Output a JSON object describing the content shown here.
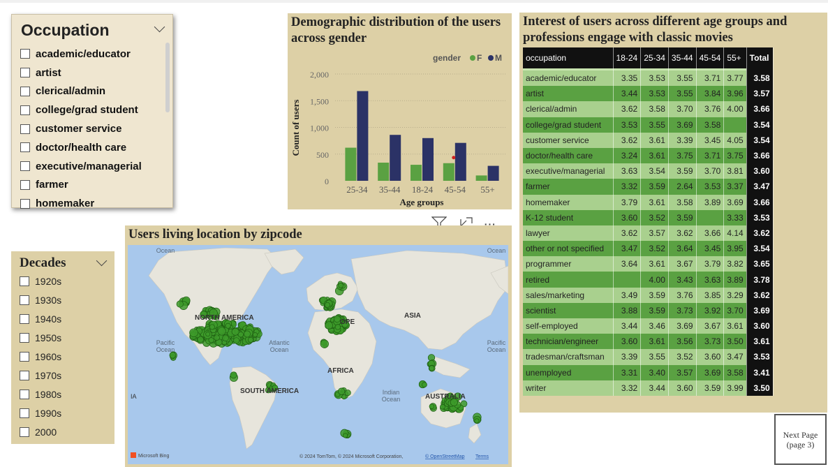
{
  "occupation_slicer": {
    "title": "Occupation",
    "items": [
      "academic/educator",
      "artist",
      "clerical/admin",
      "college/grad student",
      "customer service",
      "doctor/health care",
      "executive/managerial",
      "farmer",
      "homemaker"
    ]
  },
  "decades_slicer": {
    "title": "Decades",
    "items": [
      "1920s",
      "1930s",
      "1940s",
      "1950s",
      "1960s",
      "1970s",
      "1980s",
      "1990s",
      "2000"
    ]
  },
  "chart_data": {
    "type": "bar",
    "title": "Demographic distribution of the users across gender",
    "xlabel": "Age groups",
    "ylabel": "Count of users",
    "legend_title": "gender",
    "categories": [
      "25-34",
      "35-44",
      "18-24",
      "45-54",
      "55+"
    ],
    "series": [
      {
        "name": "F",
        "color": "#5aa142",
        "values": [
          620,
          340,
          300,
          330,
          100
        ]
      },
      {
        "name": "M",
        "color": "#2b3266",
        "values": [
          1680,
          860,
          800,
          710,
          280
        ]
      }
    ],
    "yticks": [
      "0",
      "500",
      "1,000",
      "1,500",
      "2,000"
    ],
    "ylim": [
      0,
      2000
    ]
  },
  "map": {
    "title": "Users living location by zipcode",
    "labels": {
      "north_america": "NORTH AMERICA",
      "europe": "OPE",
      "asia": "ASIA",
      "africa": "AFRICA",
      "south_america": "SOUTH AMERICA",
      "australia": "AUSTRALIA",
      "pacific_left": "Pacific\nOcean",
      "pacific_right": "Pacific\nOcean",
      "atlantic": "Atlantic\nOcean",
      "indian": "Indian\nOcean",
      "arctic_left": "Ocean",
      "arctic_right": "Ocean",
      "edge_left": "IA"
    },
    "bing": "Microsoft Bing",
    "copyright": "© 2024 TomTom, © 2024 Microsoft Corporation,",
    "osm": "© OpenStreetMap",
    "terms": "Terms"
  },
  "table": {
    "title": "Interest of users across different age groups and professions engage with classic movies",
    "headers": [
      "occupation",
      "18-24",
      "25-34",
      "35-44",
      "45-54",
      "55+",
      "Total"
    ],
    "rows": [
      [
        "academic/educator",
        "3.35",
        "3.53",
        "3.55",
        "3.71",
        "3.77",
        "3.58"
      ],
      [
        "artist",
        "3.44",
        "3.53",
        "3.55",
        "3.84",
        "3.96",
        "3.57"
      ],
      [
        "clerical/admin",
        "3.62",
        "3.58",
        "3.70",
        "3.76",
        "4.00",
        "3.66"
      ],
      [
        "college/grad student",
        "3.53",
        "3.55",
        "3.69",
        "3.58",
        "",
        "3.54"
      ],
      [
        "customer service",
        "3.62",
        "3.61",
        "3.39",
        "3.45",
        "4.05",
        "3.54"
      ],
      [
        "doctor/health care",
        "3.24",
        "3.61",
        "3.75",
        "3.71",
        "3.75",
        "3.66"
      ],
      [
        "executive/managerial",
        "3.63",
        "3.54",
        "3.59",
        "3.70",
        "3.81",
        "3.60"
      ],
      [
        "farmer",
        "3.32",
        "3.59",
        "2.64",
        "3.53",
        "3.37",
        "3.47"
      ],
      [
        "homemaker",
        "3.79",
        "3.61",
        "3.58",
        "3.89",
        "3.69",
        "3.66"
      ],
      [
        "K-12 student",
        "3.60",
        "3.52",
        "3.59",
        "",
        "3.33",
        "3.53"
      ],
      [
        "lawyer",
        "3.62",
        "3.57",
        "3.62",
        "3.66",
        "4.14",
        "3.62"
      ],
      [
        "other or not specified",
        "3.47",
        "3.52",
        "3.64",
        "3.45",
        "3.95",
        "3.54"
      ],
      [
        "programmer",
        "3.64",
        "3.61",
        "3.67",
        "3.79",
        "3.82",
        "3.65"
      ],
      [
        "retired",
        "",
        "4.00",
        "3.43",
        "3.63",
        "3.89",
        "3.78"
      ],
      [
        "sales/marketing",
        "3.49",
        "3.59",
        "3.76",
        "3.85",
        "3.29",
        "3.62"
      ],
      [
        "scientist",
        "3.88",
        "3.59",
        "3.73",
        "3.92",
        "3.70",
        "3.69"
      ],
      [
        "self-employed",
        "3.44",
        "3.46",
        "3.69",
        "3.67",
        "3.61",
        "3.60"
      ],
      [
        "technician/engineer",
        "3.60",
        "3.61",
        "3.56",
        "3.73",
        "3.50",
        "3.61"
      ],
      [
        "tradesman/craftsman",
        "3.39",
        "3.55",
        "3.52",
        "3.60",
        "3.47",
        "3.53"
      ],
      [
        "unemployed",
        "3.31",
        "3.40",
        "3.57",
        "3.69",
        "3.58",
        "3.41"
      ],
      [
        "writer",
        "3.32",
        "3.44",
        "3.60",
        "3.59",
        "3.99",
        "3.50"
      ]
    ]
  },
  "next_page": {
    "line1": "Next Page",
    "line2": "(page 3)"
  },
  "colors": {
    "panel": "#ddd0a6",
    "green": "#5aa142",
    "light_green": "#a9d08e",
    "navy": "#2b3266"
  }
}
